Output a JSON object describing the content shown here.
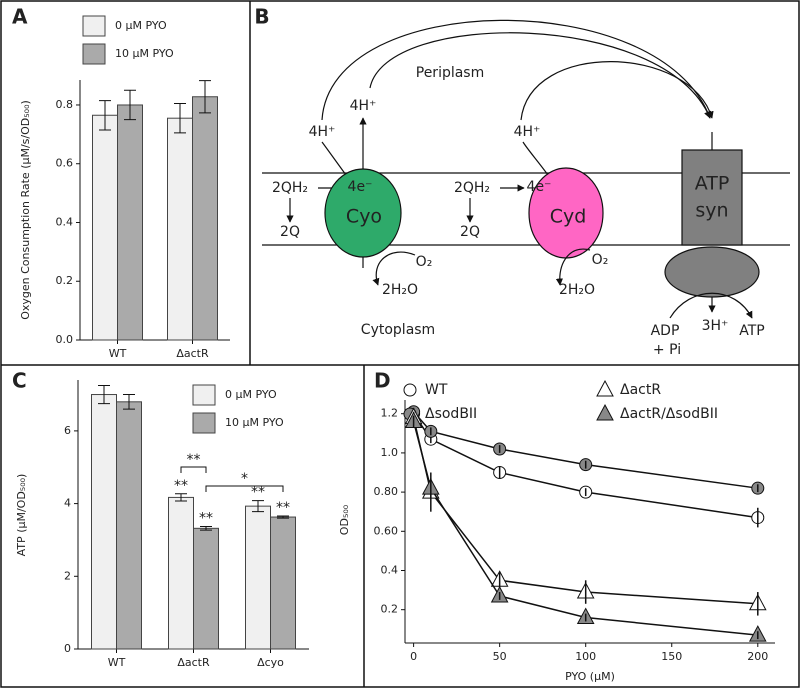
{
  "chart_data": [
    {
      "type": "bar",
      "panel": "A",
      "ylabel": "Oxygen Consumption Rate (µM/s/OD₅₀₀)",
      "categories": [
        "WT",
        "ΔactR"
      ],
      "series": [
        {
          "name": "0 µM PYO",
          "color": "#f0f0f0",
          "values": [
            0.765,
            0.755
          ],
          "errors": [
            0.05,
            0.05
          ]
        },
        {
          "name": "10 µM PYO",
          "color": "#aaaaaa",
          "values": [
            0.8,
            0.828
          ],
          "errors": [
            0.05,
            0.055
          ]
        }
      ],
      "ylim": [
        0,
        0.885
      ],
      "yticks": [
        {
          "value": 0,
          "label": "0.0"
        },
        0.2,
        0.4,
        0.6,
        0.8
      ]
    },
    {
      "type": "bar",
      "panel": "C",
      "ylabel": "ATP (µM/OD₅₀₀)",
      "categories": [
        "WT",
        "ΔactR",
        "Δcyo"
      ],
      "series": [
        {
          "name": "0 µM PYO",
          "color": "#f0f0f0",
          "values": [
            7.0,
            4.17,
            3.93
          ],
          "errors": [
            0.25,
            0.1,
            0.15
          ],
          "significance": [
            null,
            "**",
            "**"
          ]
        },
        {
          "name": "10 µM PYO",
          "color": "#aaaaaa",
          "values": [
            6.8,
            3.32,
            3.63
          ],
          "errors": [
            0.2,
            0.05,
            0.03
          ],
          "significance": [
            null,
            "**",
            "**"
          ]
        }
      ],
      "brackets": [
        {
          "text": "**"
        },
        {
          "text": "*"
        }
      ],
      "ylim": [
        0,
        7.4
      ],
      "yticks": [
        0,
        2,
        4,
        6
      ]
    },
    {
      "type": "line",
      "panel": "D",
      "xlabel": "PYO (µM)",
      "ylabel": "OD₅₀₀",
      "x": [
        0,
        10,
        50,
        100,
        200
      ],
      "series": [
        {
          "name": "WT",
          "marker": "circle",
          "color": "#ffffff",
          "values": [
            1.2,
            1.07,
            0.9,
            0.8,
            0.67
          ],
          "errors": [
            0.02,
            0.02,
            0.03,
            0.02,
            0.05
          ]
        },
        {
          "name": "ΔsodBII",
          "marker": "circle",
          "color": "#888888",
          "values": [
            1.21,
            1.11,
            1.02,
            0.94,
            0.82
          ],
          "errors": [
            0.02,
            0.02,
            0.02,
            0.02,
            0.02
          ]
        },
        {
          "name": "ΔactR",
          "marker": "triangle",
          "color": "#ffffff",
          "values": [
            1.18,
            0.8,
            0.35,
            0.29,
            0.23
          ],
          "errors": [
            0.03,
            0.1,
            0.04,
            0.06,
            0.06
          ]
        },
        {
          "name": "ΔactR/ΔsodBII",
          "marker": "triangle",
          "color": "#888888",
          "values": [
            1.16,
            0.82,
            0.27,
            0.16,
            0.07
          ],
          "errors": [
            0.03,
            0.05,
            0.02,
            0.02,
            0.02
          ]
        }
      ],
      "xlim": [
        -5,
        210
      ],
      "ylim": [
        0.03,
        1.27
      ],
      "xticks": [
        0,
        50,
        100,
        150,
        200
      ],
      "yticks": [
        0.2,
        0.4,
        {
          "value": 0.6,
          "label": "0.60"
        },
        {
          "value": 0.8,
          "label": "0.80"
        },
        {
          "value": 1.0,
          "label": "1.0"
        },
        1.2
      ]
    }
  ],
  "diagram": {
    "panel": "B",
    "periplasm": "Periplasm",
    "cytoplasm": "Cytoplasm",
    "cyo": {
      "name": "Cyo",
      "proton_in": "4H⁺",
      "proton_out": "4H⁺",
      "donor": "2QH₂",
      "product": "2Q",
      "electrons": "4e⁻",
      "oxygen": "O₂",
      "water": "2H₂O"
    },
    "cyd": {
      "name": "Cyd",
      "proton_in": "4H⁺",
      "donor": "2QH₂",
      "product": "2Q",
      "electrons": "4e⁻",
      "oxygen": "O₂",
      "water": "2H₂O"
    },
    "atp_synthase": {
      "name_line1": "ATP",
      "name_line2": "syn",
      "protons": "3H⁺",
      "substrate_line1": "ADP",
      "substrate_line2": "+ Pi",
      "product": "ATP"
    }
  }
}
